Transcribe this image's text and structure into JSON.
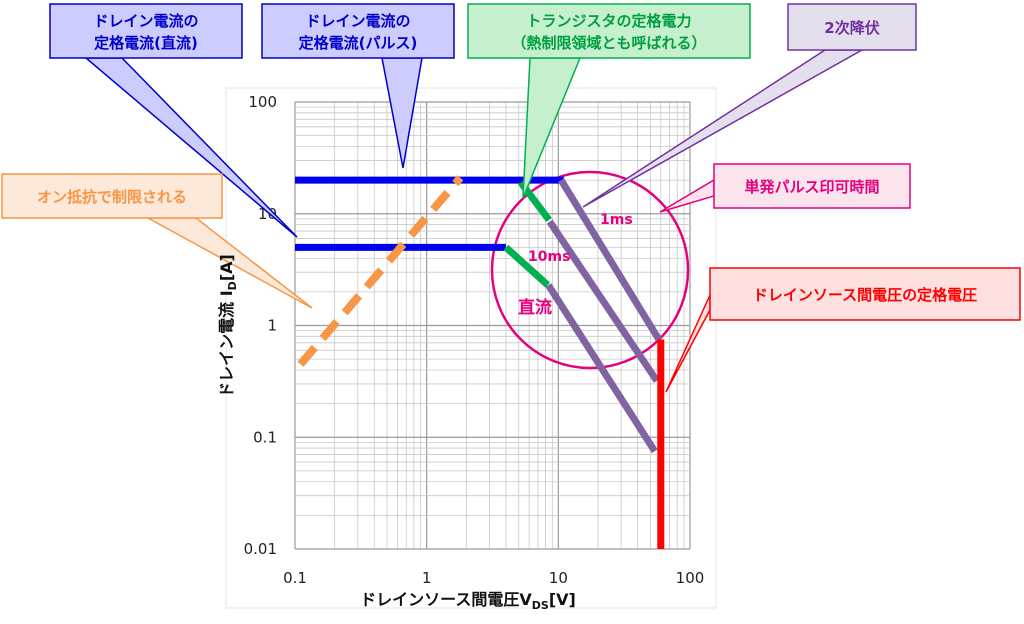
{
  "chart_data": {
    "type": "line",
    "title": "",
    "xlabel": "ドレインソース間電圧V",
    "xlabel_sub": "DS",
    "xlabel_unit": "[V]",
    "ylabel": "ドレイン電流 I",
    "ylabel_sub": "D",
    "ylabel_unit": "[A]",
    "x_scale": "log",
    "y_scale": "log",
    "xlim": [
      0.1,
      100
    ],
    "ylim": [
      0.01,
      100
    ],
    "x_ticks": [
      "0.1",
      "1",
      "10",
      "100"
    ],
    "y_ticks": [
      "100",
      "10",
      "1",
      "0.1",
      "0.01"
    ],
    "grid": true,
    "series": [
      {
        "color": "#0000ee",
        "points": [
          [
            0.1,
            20
          ],
          [
            11,
            20
          ]
        ]
      },
      {
        "color": "#0000ee",
        "points": [
          [
            0.1,
            5
          ],
          [
            4,
            5
          ]
        ]
      },
      {
        "color": "#f79646",
        "dashed": true,
        "points": [
          [
            0.11,
            0.45
          ],
          [
            1.8,
            21
          ]
        ]
      },
      {
        "color": "#00b050",
        "points": [
          [
            5.2,
            19
          ],
          [
            8.5,
            8.8
          ]
        ]
      },
      {
        "color": "#00b050",
        "points": [
          [
            4,
            5
          ],
          [
            8.3,
            2.3
          ]
        ]
      },
      {
        "color": "#8064a2",
        "points": [
          [
            10.5,
            20
          ],
          [
            58,
            0.75
          ]
        ]
      },
      {
        "color": "#8064a2",
        "points": [
          [
            8.6,
            8.5
          ],
          [
            56,
            0.32
          ]
        ]
      },
      {
        "color": "#8064a2",
        "points": [
          [
            8.4,
            2.3
          ],
          [
            54,
            0.075
          ]
        ]
      },
      {
        "color": "#ff0000",
        "points": [
          [
            60,
            0.75
          ],
          [
            60,
            0.01
          ]
        ]
      }
    ],
    "annotations": [
      {
        "text": "1ms",
        "color": "#e6007e"
      },
      {
        "text": "10ms",
        "color": "#e6007e"
      },
      {
        "text": "直流",
        "color": "#e6007e"
      }
    ],
    "callouts": [
      {
        "lines": [
          "ドレイン電流の",
          "定格電流(直流)"
        ],
        "fill": "#ccccff",
        "stroke": "#0000cc",
        "text_color": "#0000cc"
      },
      {
        "lines": [
          "ドレイン電流の",
          "定格電流(パルス)"
        ],
        "fill": "#ccccff",
        "stroke": "#0000cc",
        "text_color": "#0000cc"
      },
      {
        "lines": [
          "トランジスタの定格電力",
          "（熱制限領域とも呼ばれる）"
        ],
        "fill": "#c6efce",
        "stroke": "#00b050",
        "text_color": "#00a040"
      },
      {
        "lines": [
          "2次降伏"
        ],
        "fill": "#e4dfec",
        "stroke": "#7030a0",
        "text_color": "#7030a0"
      },
      {
        "lines": [
          "オン抵抗で制限される"
        ],
        "fill": "#fde9d9",
        "stroke": "#f79646",
        "text_color": "#f79646"
      },
      {
        "lines": [
          "単発パルス印可時間"
        ],
        "fill": "#fce4ec",
        "stroke": "#e6007e",
        "text_color": "#e6007e"
      },
      {
        "lines": [
          "ドレインソース間電圧の定格電圧"
        ],
        "fill": "#ffe0e0",
        "stroke": "#ff0000",
        "text_color": "#ff0000"
      }
    ]
  }
}
